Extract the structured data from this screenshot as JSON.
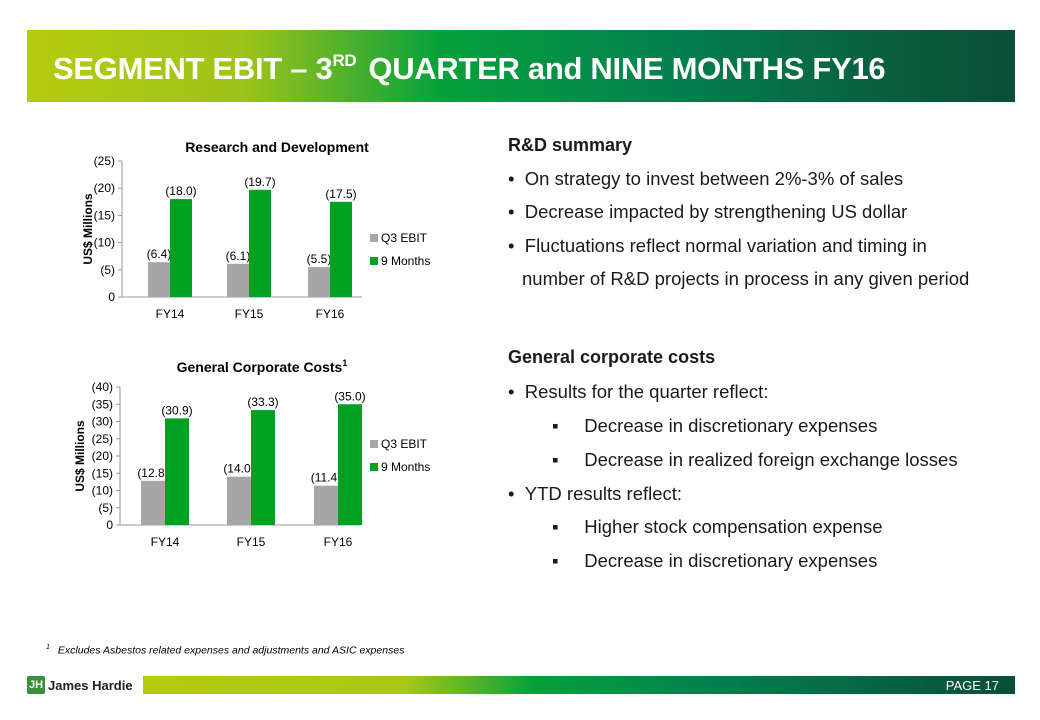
{
  "header": {
    "title_pre": "SEGMENT EBIT – 3",
    "title_sup": "RD",
    "title_post": "QUARTER and NINE MONTHS FY16"
  },
  "chart_data": [
    {
      "type": "bar",
      "title": "Research and Development",
      "title_sup": "",
      "ylabel": "US$ Millions",
      "ylim": [
        0,
        25
      ],
      "yticks": [
        "0",
        "(5)",
        "(10)",
        "(15)",
        "(20)",
        "(25)"
      ],
      "categories": [
        "FY14",
        "FY15",
        "FY16"
      ],
      "series": [
        {
          "name": "Q3 EBIT",
          "color": "#a6a6a6",
          "values": [
            6.4,
            6.1,
            5.5
          ],
          "labels": [
            "(6.4)",
            "(6.1)",
            "(5.5)"
          ]
        },
        {
          "name": "9 Months",
          "color": "#00a020",
          "values": [
            18.0,
            19.7,
            17.5
          ],
          "labels": [
            "(18.0)",
            "(19.7)",
            "(17.5)"
          ]
        }
      ],
      "legend": "right"
    },
    {
      "type": "bar",
      "title": "General Corporate Costs",
      "title_sup": "1",
      "ylabel": "US$ Millions",
      "ylim": [
        0,
        40
      ],
      "yticks": [
        "0",
        "(5)",
        "(10)",
        "(15)",
        "(20)",
        "(25)",
        "(30)",
        "(35)",
        "(40)"
      ],
      "categories": [
        "FY14",
        "FY15",
        "FY16"
      ],
      "series": [
        {
          "name": "Q3 EBIT",
          "color": "#a6a6a6",
          "values": [
            12.8,
            14.0,
            11.4
          ],
          "labels": [
            "(12.8)",
            "(14.0)",
            "(11.4)"
          ]
        },
        {
          "name": "9 Months",
          "color": "#00a020",
          "values": [
            30.9,
            33.3,
            35.0
          ],
          "labels": [
            "(30.9)",
            "(33.3)",
            "(35.0)"
          ]
        }
      ],
      "legend": "right"
    }
  ],
  "rd": {
    "heading": "R&D summary",
    "bullets": [
      "On strategy to invest between 2%-3% of sales",
      "Decrease impacted by strengthening US dollar",
      "Fluctuations reflect normal variation and timing in",
      "number of R&D projects in process in any given period"
    ]
  },
  "gc": {
    "heading": "General corporate costs",
    "b1": "Results for the quarter reflect:",
    "s1": [
      "Decrease in discretionary expenses",
      "Decrease in realized foreign exchange losses"
    ],
    "b2": "YTD results reflect:",
    "s2": [
      "Higher stock compensation expense",
      "Decrease in discretionary expenses"
    ]
  },
  "footnote": {
    "mark": "1",
    "text": "Excludes Asbestos related expenses and adjustments and ASIC expenses"
  },
  "footer": {
    "brand": "James Hardie",
    "page": "PAGE   17"
  }
}
